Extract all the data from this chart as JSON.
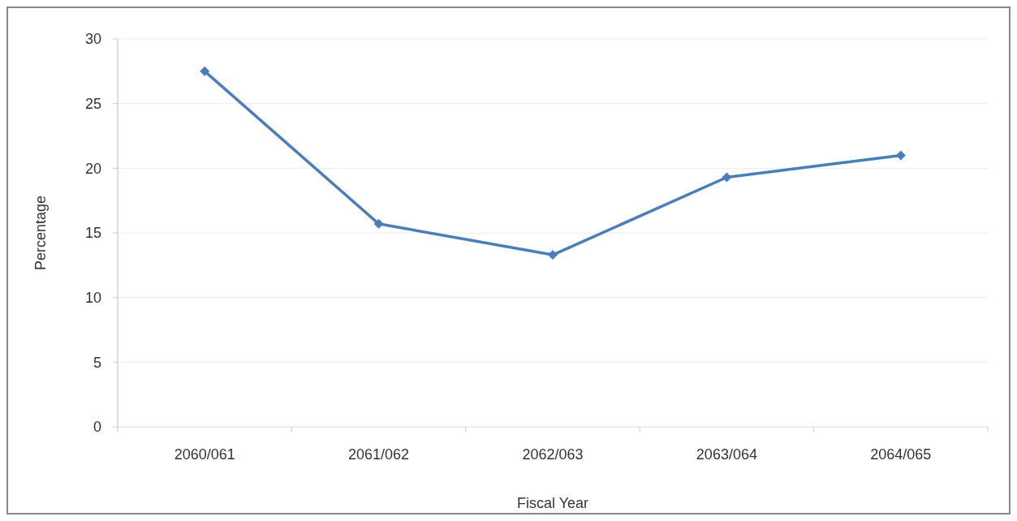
{
  "chart_data": {
    "type": "line",
    "xlabel": "Fiscal Year",
    "ylabel": "Percentage",
    "categories": [
      "2060/061",
      "2061/062",
      "2062/063",
      "2063/064",
      "2064/065"
    ],
    "series": [
      {
        "color": "#4a7ebb",
        "values": [
          27.5,
          15.7,
          13.3,
          19.3,
          21.0
        ]
      }
    ],
    "ylim": [
      0,
      30
    ],
    "yticks": [
      0,
      5,
      10,
      15,
      20,
      25,
      30
    ],
    "grid": "y",
    "marker": "diamond",
    "line_style": "solid"
  }
}
